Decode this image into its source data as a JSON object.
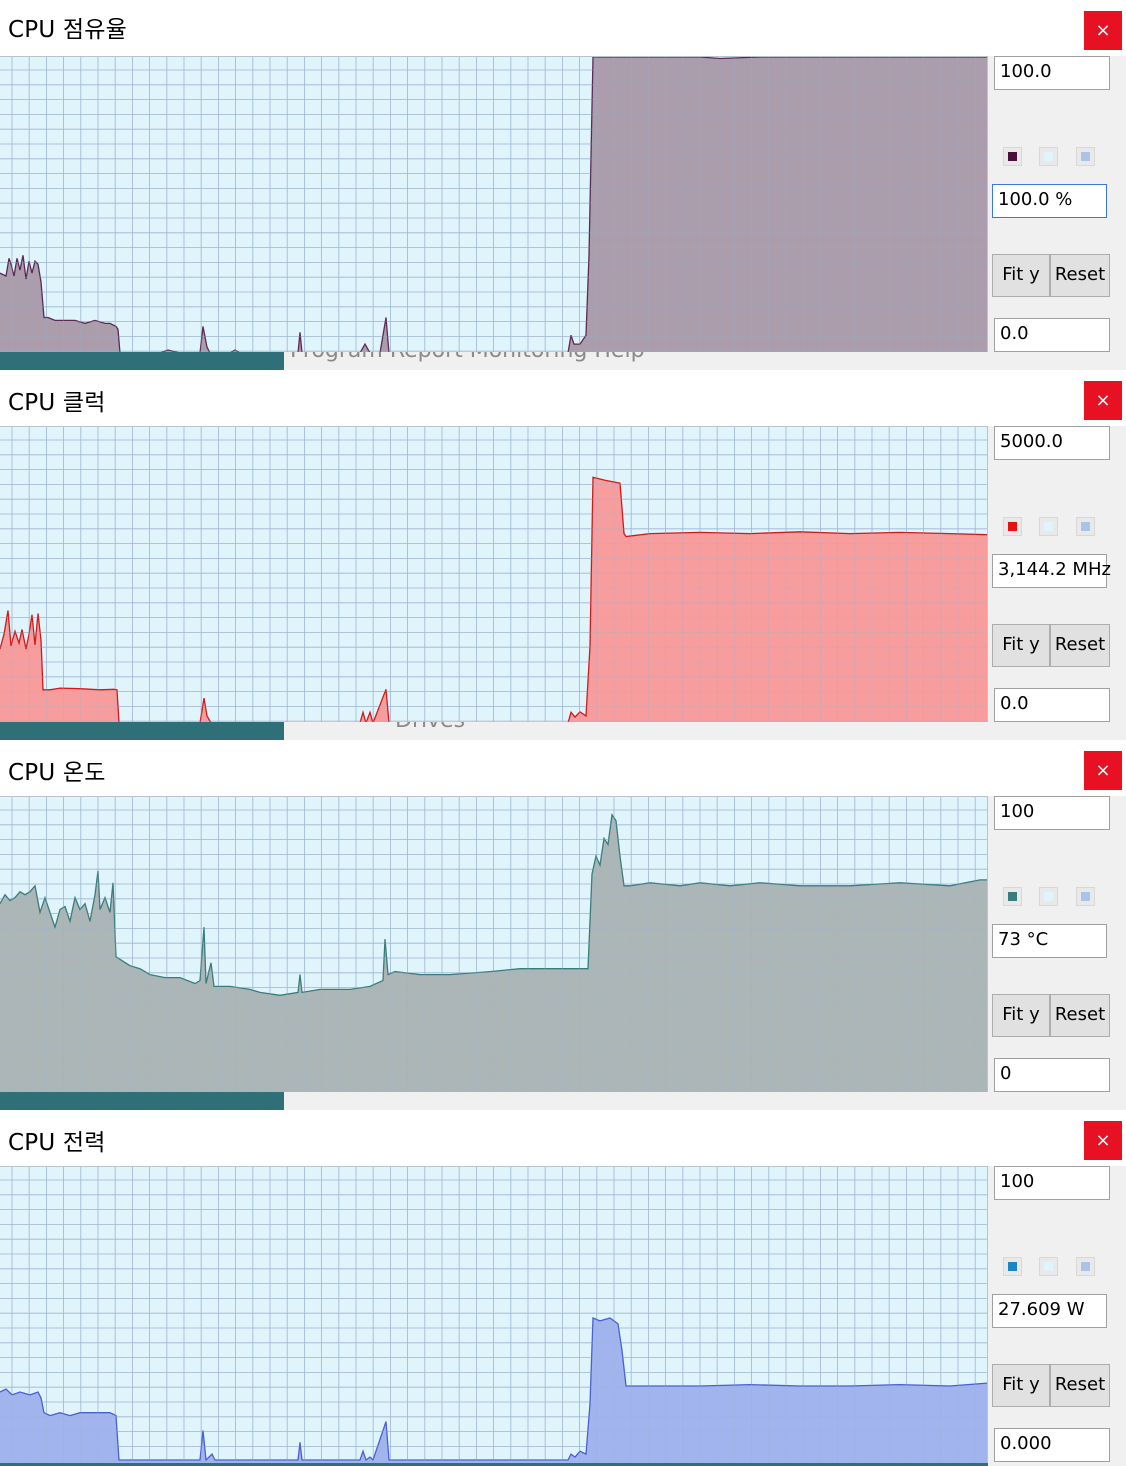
{
  "colors": {
    "grid": "#9fb9d6",
    "plot_bg": "#e0f5fb"
  },
  "background_strips": [
    {
      "text": "Program  Report  Monitoring  Help"
    },
    {
      "text": "Drives"
    }
  ],
  "panels": [
    {
      "title": "CPU 점유율",
      "close": "×",
      "y_max": "100.0",
      "y_min": "0.0",
      "current": "100.0 %",
      "fit_label": "Fit y",
      "reset_label": "Reset",
      "swatch_colors": [
        "#4a0f3a",
        "#dff4fb",
        "#a9c4e8"
      ],
      "fill": "#a898a8",
      "stroke": "#5a2a55",
      "chart_data": {
        "type": "area",
        "ylim": [
          0,
          100
        ],
        "points": [
          [
            0,
            27
          ],
          [
            6,
            26
          ],
          [
            9,
            32
          ],
          [
            11,
            30
          ],
          [
            14,
            26
          ],
          [
            17,
            32
          ],
          [
            20,
            28
          ],
          [
            23,
            33
          ],
          [
            26,
            25
          ],
          [
            29,
            31
          ],
          [
            32,
            27
          ],
          [
            35,
            31
          ],
          [
            38,
            30
          ],
          [
            41,
            24
          ],
          [
            44,
            12
          ],
          [
            48,
            12
          ],
          [
            55,
            11
          ],
          [
            65,
            11
          ],
          [
            75,
            11
          ],
          [
            85,
            10
          ],
          [
            95,
            11
          ],
          [
            105,
            10
          ],
          [
            110,
            10
          ],
          [
            116,
            9
          ],
          [
            118,
            8
          ],
          [
            120,
            0
          ],
          [
            160,
            0
          ],
          [
            168,
            1
          ],
          [
            180,
            0
          ],
          [
            200,
            0
          ],
          [
            203,
            9
          ],
          [
            207,
            2
          ],
          [
            210,
            0
          ],
          [
            230,
            0
          ],
          [
            235,
            1
          ],
          [
            240,
            0
          ],
          [
            280,
            0
          ],
          [
            298,
            0
          ],
          [
            300,
            7
          ],
          [
            302,
            0
          ],
          [
            330,
            0
          ],
          [
            360,
            0
          ],
          [
            365,
            3
          ],
          [
            370,
            0
          ],
          [
            380,
            0
          ],
          [
            386,
            12
          ],
          [
            389,
            0
          ],
          [
            420,
            0
          ],
          [
            480,
            0
          ],
          [
            540,
            0
          ],
          [
            568,
            0
          ],
          [
            571,
            6
          ],
          [
            574,
            3
          ],
          [
            580,
            3
          ],
          [
            586,
            6
          ],
          [
            589,
            33
          ],
          [
            593,
            100
          ],
          [
            700,
            100
          ],
          [
            720,
            99.5
          ],
          [
            760,
            100
          ],
          [
            987,
            100
          ]
        ]
      }
    },
    {
      "title": "CPU 클럭",
      "close": "×",
      "y_max": "5000.0",
      "y_min": "0.0",
      "current": "3,144.2 MHz",
      "fit_label": "Fit y",
      "reset_label": "Reset",
      "swatch_colors": [
        "#e81010",
        "#dff4fb",
        "#a9c4e8"
      ],
      "fill": "#f89898",
      "stroke": "#d01a1a",
      "chart_data": {
        "type": "area",
        "ylim": [
          0,
          5000
        ],
        "points": [
          [
            0,
            1250
          ],
          [
            4,
            1500
          ],
          [
            8,
            1900
          ],
          [
            11,
            1300
          ],
          [
            15,
            1550
          ],
          [
            19,
            1350
          ],
          [
            22,
            1580
          ],
          [
            26,
            1250
          ],
          [
            29,
            1500
          ],
          [
            32,
            1830
          ],
          [
            35,
            1320
          ],
          [
            38,
            1850
          ],
          [
            41,
            1400
          ],
          [
            43,
            560
          ],
          [
            50,
            560
          ],
          [
            60,
            590
          ],
          [
            80,
            580
          ],
          [
            100,
            560
          ],
          [
            114,
            570
          ],
          [
            117,
            560
          ],
          [
            119,
            0
          ],
          [
            200,
            0
          ],
          [
            204,
            420
          ],
          [
            207,
            120
          ],
          [
            211,
            0
          ],
          [
            240,
            0
          ],
          [
            300,
            0
          ],
          [
            360,
            0
          ],
          [
            363,
            180
          ],
          [
            366,
            0
          ],
          [
            370,
            180
          ],
          [
            373,
            0
          ],
          [
            386,
            570
          ],
          [
            389,
            0
          ],
          [
            440,
            0
          ],
          [
            520,
            0
          ],
          [
            568,
            0
          ],
          [
            571,
            180
          ],
          [
            575,
            100
          ],
          [
            580,
            190
          ],
          [
            586,
            120
          ],
          [
            590,
            1300
          ],
          [
            593,
            4150
          ],
          [
            605,
            4100
          ],
          [
            620,
            4050
          ],
          [
            624,
            3200
          ],
          [
            626,
            3150
          ],
          [
            650,
            3200
          ],
          [
            700,
            3220
          ],
          [
            750,
            3200
          ],
          [
            800,
            3230
          ],
          [
            850,
            3200
          ],
          [
            900,
            3220
          ],
          [
            950,
            3200
          ],
          [
            987,
            3180
          ]
        ]
      }
    },
    {
      "title": "CPU 온도",
      "close": "×",
      "y_max": "100",
      "y_min": "0",
      "current": "73 °C",
      "fit_label": "Fit y",
      "reset_label": "Reset",
      "swatch_colors": [
        "#3a7c7c",
        "#dff4fb",
        "#a9c4e8"
      ],
      "fill": "#a9b2b2",
      "stroke": "#3a7c7c",
      "chart_data": {
        "type": "area",
        "ylim": [
          0,
          100
        ],
        "points": [
          [
            0,
            64
          ],
          [
            5,
            67
          ],
          [
            10,
            65
          ],
          [
            15,
            66
          ],
          [
            20,
            68
          ],
          [
            25,
            67
          ],
          [
            30,
            68
          ],
          [
            35,
            70
          ],
          [
            40,
            61
          ],
          [
            45,
            66
          ],
          [
            50,
            61
          ],
          [
            55,
            56
          ],
          [
            60,
            62
          ],
          [
            65,
            63
          ],
          [
            70,
            58
          ],
          [
            75,
            66
          ],
          [
            80,
            62
          ],
          [
            85,
            64
          ],
          [
            90,
            58
          ],
          [
            95,
            67
          ],
          [
            98,
            75
          ],
          [
            100,
            62
          ],
          [
            105,
            66
          ],
          [
            110,
            61
          ],
          [
            113,
            71
          ],
          [
            116,
            46
          ],
          [
            130,
            43
          ],
          [
            140,
            42
          ],
          [
            150,
            40
          ],
          [
            165,
            39
          ],
          [
            180,
            39
          ],
          [
            195,
            37
          ],
          [
            200,
            38
          ],
          [
            204,
            56
          ],
          [
            206,
            37
          ],
          [
            211,
            44
          ],
          [
            214,
            36
          ],
          [
            230,
            36
          ],
          [
            250,
            35
          ],
          [
            260,
            34
          ],
          [
            280,
            33
          ],
          [
            298,
            34
          ],
          [
            300,
            40
          ],
          [
            302,
            34
          ],
          [
            320,
            35
          ],
          [
            350,
            35
          ],
          [
            370,
            36
          ],
          [
            383,
            38
          ],
          [
            385,
            52
          ],
          [
            388,
            40
          ],
          [
            395,
            41
          ],
          [
            420,
            40
          ],
          [
            450,
            40
          ],
          [
            490,
            41
          ],
          [
            520,
            42
          ],
          [
            550,
            42
          ],
          [
            580,
            42
          ],
          [
            588,
            42
          ],
          [
            592,
            74
          ],
          [
            596,
            80
          ],
          [
            600,
            77
          ],
          [
            604,
            86
          ],
          [
            608,
            84
          ],
          [
            612,
            94
          ],
          [
            616,
            92
          ],
          [
            620,
            80
          ],
          [
            624,
            70
          ],
          [
            630,
            70
          ],
          [
            650,
            71
          ],
          [
            680,
            70
          ],
          [
            700,
            71
          ],
          [
            730,
            70
          ],
          [
            760,
            71
          ],
          [
            800,
            70
          ],
          [
            850,
            70
          ],
          [
            900,
            71
          ],
          [
            950,
            70
          ],
          [
            980,
            72
          ],
          [
            987,
            72
          ]
        ]
      }
    },
    {
      "title": "CPU 전력",
      "close": "×",
      "y_max": "100",
      "y_min": "0.000",
      "current": "27.609 W",
      "fit_label": "Fit y",
      "reset_label": "Reset",
      "swatch_colors": [
        "#1a86c4",
        "#dff4fb",
        "#a9c4e8"
      ],
      "fill": "#9eb0ec",
      "stroke": "#4a5ed6",
      "chart_data": {
        "type": "area",
        "ylim": [
          0,
          100
        ],
        "points": [
          [
            0,
            24
          ],
          [
            6,
            25
          ],
          [
            12,
            23
          ],
          [
            20,
            24
          ],
          [
            30,
            23
          ],
          [
            38,
            24
          ],
          [
            41,
            22
          ],
          [
            44,
            17
          ],
          [
            50,
            16
          ],
          [
            60,
            17
          ],
          [
            70,
            16
          ],
          [
            80,
            17
          ],
          [
            90,
            17
          ],
          [
            100,
            17
          ],
          [
            110,
            17
          ],
          [
            116,
            16
          ],
          [
            119,
            1
          ],
          [
            150,
            1
          ],
          [
            200,
            1
          ],
          [
            203,
            11
          ],
          [
            206,
            1
          ],
          [
            212,
            3
          ],
          [
            215,
            1
          ],
          [
            240,
            1
          ],
          [
            260,
            1
          ],
          [
            298,
            1
          ],
          [
            300,
            7
          ],
          [
            302,
            1
          ],
          [
            360,
            1
          ],
          [
            363,
            4
          ],
          [
            366,
            1
          ],
          [
            370,
            2
          ],
          [
            373,
            1
          ],
          [
            386,
            14
          ],
          [
            389,
            1
          ],
          [
            440,
            1
          ],
          [
            500,
            1
          ],
          [
            560,
            1
          ],
          [
            568,
            1
          ],
          [
            571,
            3
          ],
          [
            575,
            2
          ],
          [
            580,
            4
          ],
          [
            586,
            3
          ],
          [
            590,
            20
          ],
          [
            593,
            49
          ],
          [
            600,
            48
          ],
          [
            610,
            49
          ],
          [
            618,
            47
          ],
          [
            622,
            38
          ],
          [
            626,
            26
          ],
          [
            650,
            26
          ],
          [
            700,
            26
          ],
          [
            750,
            26.5
          ],
          [
            800,
            26
          ],
          [
            850,
            26
          ],
          [
            900,
            26.5
          ],
          [
            950,
            26
          ],
          [
            987,
            27
          ]
        ]
      }
    }
  ]
}
